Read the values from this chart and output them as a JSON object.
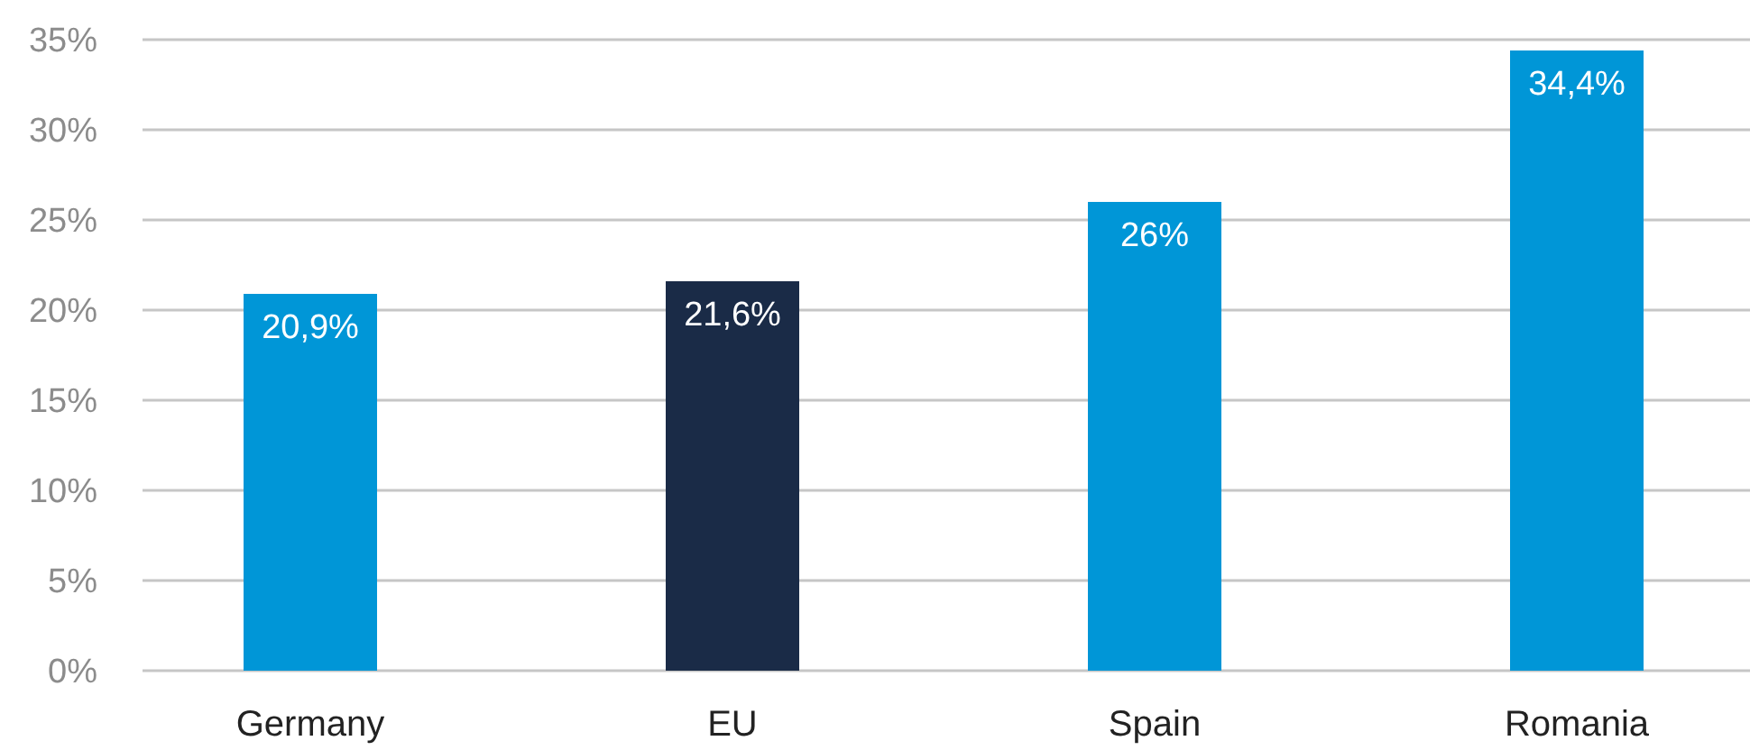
{
  "chart_data": {
    "type": "bar",
    "categories": [
      "Germany",
      "EU",
      "Spain",
      "Romania"
    ],
    "values": [
      20.9,
      21.6,
      26,
      34.4
    ],
    "colors": [
      "#0096d7",
      "#1a2b47",
      "#0096d7",
      "#0096d7"
    ],
    "value_labels": [
      "20,9%",
      "21,6%",
      "26%",
      "34,4%"
    ],
    "ylim": [
      0,
      35
    ],
    "yticks": [
      {
        "value": 0,
        "label": "0%"
      },
      {
        "value": 5,
        "label": "5%"
      },
      {
        "value": 10,
        "label": "10%"
      },
      {
        "value": 15,
        "label": "15%"
      },
      {
        "value": 20,
        "label": "20%"
      },
      {
        "value": 25,
        "label": "25%"
      },
      {
        "value": 30,
        "label": "30%"
      },
      {
        "value": 35,
        "label": "35%"
      }
    ],
    "grid": "y"
  }
}
